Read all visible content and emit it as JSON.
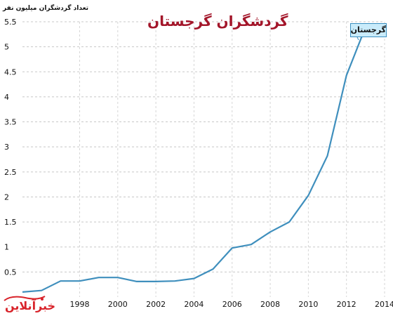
{
  "chart_data": {
    "type": "line",
    "title": "گردشگران گرجستان",
    "ylabel": "تعداد گردشگران میلیون نفر",
    "xlabel": "",
    "ylim": [
      0,
      5.5
    ],
    "xlim": [
      1995,
      2014
    ],
    "yticks": [
      "0.5",
      "1",
      "1.5",
      "2",
      "2.5",
      "3",
      "3.5",
      "4",
      "4.5",
      "5",
      "5.5"
    ],
    "xticks": [
      "1998",
      "2000",
      "2002",
      "2004",
      "2006",
      "2008",
      "2010",
      "2012",
      "2014"
    ],
    "grid": true,
    "series": [
      {
        "name": "گرجستان",
        "color": "#3f8fbd",
        "x": [
          1995,
          1996,
          1997,
          1998,
          1999,
          2000,
          2001,
          2002,
          2003,
          2004,
          2005,
          2006,
          2007,
          2008,
          2009,
          2010,
          2011,
          2012,
          2013
        ],
        "y": [
          0.1,
          0.13,
          0.32,
          0.32,
          0.39,
          0.39,
          0.31,
          0.31,
          0.32,
          0.37,
          0.56,
          0.98,
          1.05,
          1.3,
          1.5,
          2.03,
          2.82,
          4.43,
          5.39
        ]
      }
    ]
  },
  "logo": {
    "text": "خبرآنلاین"
  }
}
